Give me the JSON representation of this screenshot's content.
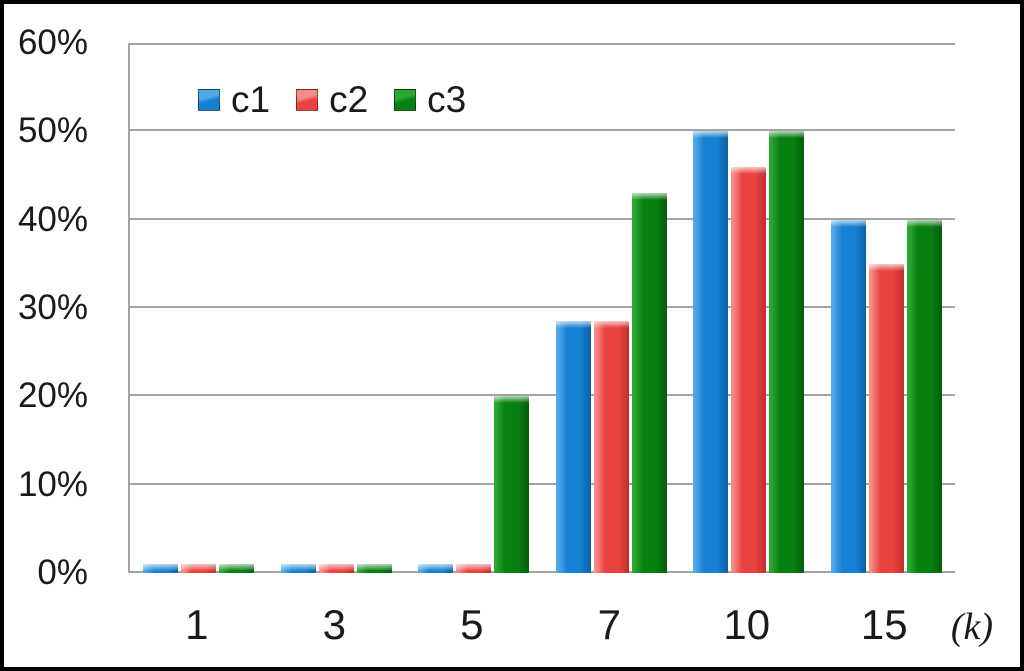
{
  "chart_data": {
    "type": "bar",
    "title": "",
    "xlabel": "(k)",
    "ylabel": "",
    "categories": [
      "1",
      "3",
      "5",
      "7",
      "10",
      "15"
    ],
    "series": [
      {
        "name": "c1",
        "color": "#1680d2",
        "color_light": "#50a8e8",
        "color_dark": "#0b5fa4",
        "values": [
          1,
          1,
          1,
          28.5,
          50,
          40
        ]
      },
      {
        "name": "c2",
        "color": "#ea4240",
        "color_light": "#f58c89",
        "color_dark": "#c02e2c",
        "values": [
          1,
          1,
          1,
          28.5,
          46,
          35
        ]
      },
      {
        "name": "c3",
        "color": "#077f11",
        "color_light": "#2aa832",
        "color_dark": "#045c0b",
        "values": [
          1,
          1,
          20,
          43,
          50,
          40
        ]
      }
    ],
    "ylim": [
      0,
      60
    ],
    "ytick_step": 10,
    "ytick_labels": [
      "0%",
      "10%",
      "20%",
      "30%",
      "40%",
      "50%",
      "60%"
    ],
    "grid": true,
    "legend_position": "top-left-inside",
    "colors": {
      "gridline": "#a3a3a3",
      "text": "#1a1a1a",
      "background": "#ffffff",
      "frame": "#000000"
    }
  }
}
